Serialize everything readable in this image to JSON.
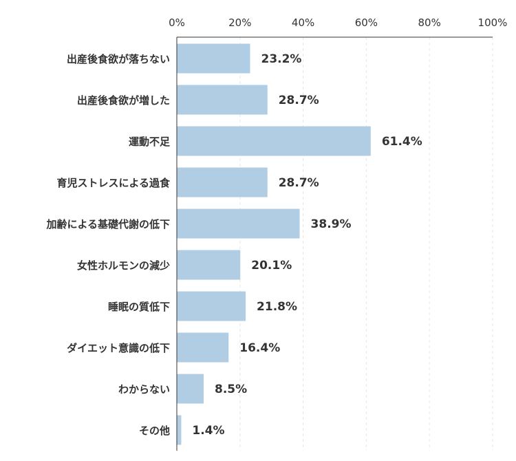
{
  "chart_data": {
    "type": "bar",
    "orientation": "horizontal",
    "categories": [
      "出産後食欲が落ちない",
      "出産後食欲が増した",
      "運動不足",
      "育児ストレスによる過食",
      "加齢による基礎代謝の低下",
      "女性ホルモンの減少",
      "睡眠の質低下",
      "ダイエット意識の低下",
      "わからない",
      "その他"
    ],
    "values": [
      23.2,
      28.7,
      61.4,
      28.7,
      38.9,
      20.1,
      21.8,
      16.4,
      8.5,
      1.4
    ],
    "value_labels": [
      "23.2%",
      "28.7%",
      "61.4%",
      "28.7%",
      "38.9%",
      "20.1%",
      "21.8%",
      "16.4%",
      "8.5%",
      "1.4%"
    ],
    "xticks": [
      0,
      20,
      40,
      60,
      80,
      100
    ],
    "xtick_labels": [
      "0%",
      "20%",
      "40%",
      "60%",
      "80%",
      "100%"
    ],
    "xlim": [
      0,
      100
    ],
    "x_axis_position": "top",
    "grid": "vertical dashed",
    "title": "",
    "xlabel": "",
    "ylabel": "",
    "colors": {
      "bar": "#b1cde3",
      "axis": "#333333",
      "grid": "#e6e6e6",
      "text": "#333333"
    }
  }
}
